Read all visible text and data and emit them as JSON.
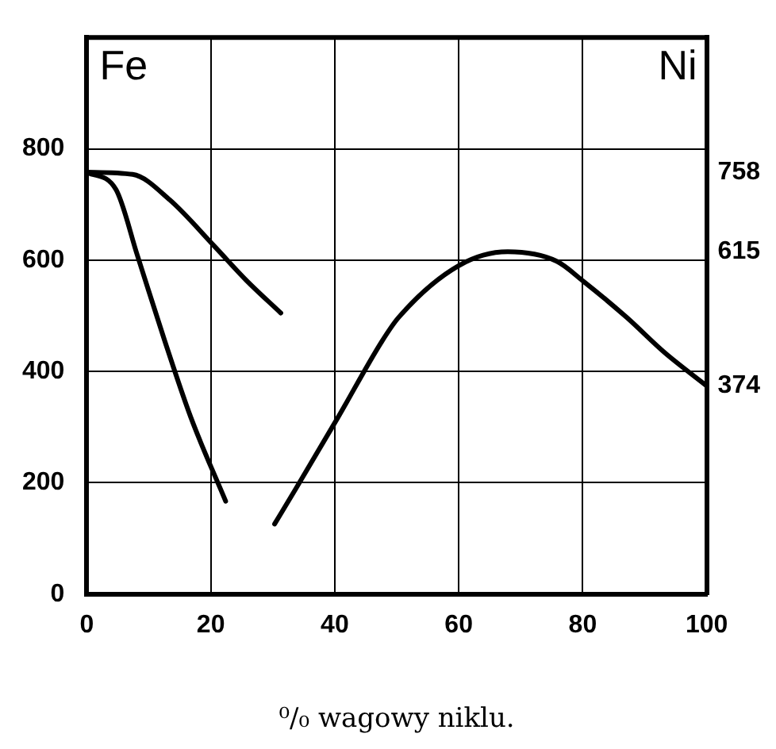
{
  "chart_data": {
    "type": "line",
    "xlabel": "⁰/₀ wagowy niklu.",
    "annotations": [
      "Fe",
      "Ni"
    ],
    "xlim": [
      0,
      100
    ],
    "xticks": [
      0,
      20,
      40,
      60,
      80,
      100
    ],
    "ylim": [
      0,
      1000
    ],
    "yticks": [
      0,
      200,
      400,
      600,
      800
    ],
    "y2lim": [
      0,
      1000
    ],
    "y2ticks": [
      374,
      615,
      758
    ],
    "series": [
      {
        "color": "#000000",
        "x": [
          0,
          7.4,
          13.4,
          20.5,
          25.8,
          31.3
        ],
        "values": [
          758,
          754,
          708,
          626,
          563,
          505
        ]
      },
      {
        "color": "#000000",
        "x": [
          0,
          4.7,
          8.2,
          12.6,
          16.8,
          22.4
        ],
        "values": [
          758,
          727,
          607,
          454,
          317,
          167
        ]
      },
      {
        "color": "#000000",
        "x": [
          30.3,
          33.7,
          40.5,
          47.6,
          50.3,
          60,
          67.9,
          75.8,
          80,
          87.1,
          93.2,
          100
        ],
        "values": [
          126,
          189,
          317,
          454,
          497,
          590,
          615,
          598,
          563,
          497,
          434,
          374
        ]
      }
    ],
    "grid": true,
    "legend": false,
    "marker": "none",
    "line_style": "solid"
  }
}
